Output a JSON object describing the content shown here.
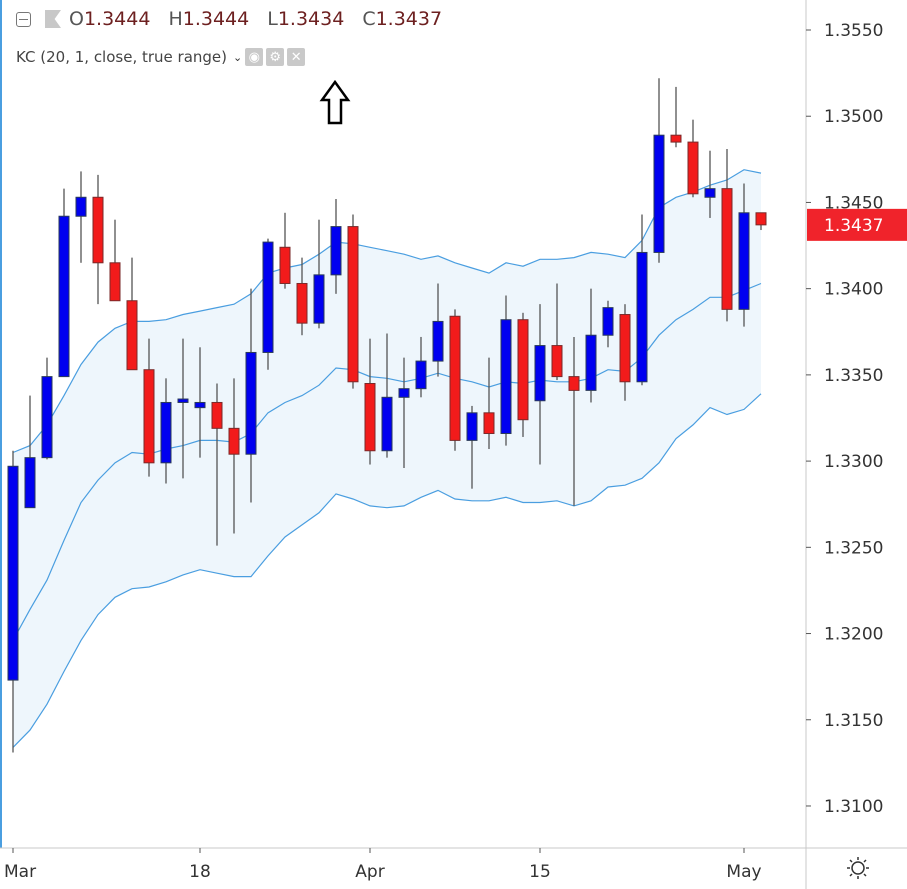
{
  "legend": {
    "open_label": "O",
    "open": "1.3444",
    "high_label": "H",
    "high": "1.3444",
    "low_label": "L",
    "low": "1.3434",
    "close_label": "C",
    "close": "1.3437"
  },
  "indicator": {
    "label": "KC (20, 1, close, true range)",
    "icons": [
      "eye-icon",
      "gear-icon",
      "close-icon"
    ]
  },
  "current_price": "1.3437",
  "colors": {
    "up": "#0000f0",
    "down": "#f21b1b",
    "band": "#4a9ee0",
    "band_fill": "#eef6fc",
    "price_box": "#f0232b"
  },
  "chart_data": {
    "type": "candlestick",
    "title": "",
    "ylim": [
      1.3075,
      1.3575
    ],
    "yticks": [
      "1.3550",
      "1.3500",
      "1.3450",
      "1.3400",
      "1.3350",
      "1.3300",
      "1.3250",
      "1.3200",
      "1.3150",
      "1.3100"
    ],
    "xticks": [
      {
        "index": 0,
        "label": "Mar"
      },
      {
        "index": 11,
        "label": "18"
      },
      {
        "index": 21,
        "label": "Apr"
      },
      {
        "index": 31,
        "label": "15"
      },
      {
        "index": 43,
        "label": "May"
      }
    ],
    "candles": [
      [
        1.3173,
        1.3306,
        1.3131,
        1.3297
      ],
      [
        1.3273,
        1.3338,
        1.3273,
        1.3302
      ],
      [
        1.3302,
        1.336,
        1.3301,
        1.3349
      ],
      [
        1.3349,
        1.3458,
        1.3349,
        1.3442
      ],
      [
        1.3442,
        1.3468,
        1.3415,
        1.3453
      ],
      [
        1.3453,
        1.3466,
        1.3391,
        1.3415
      ],
      [
        1.3415,
        1.344,
        1.3393,
        1.3393
      ],
      [
        1.3393,
        1.3418,
        1.3353,
        1.3353
      ],
      [
        1.3353,
        1.3371,
        1.3291,
        1.3299
      ],
      [
        1.3299,
        1.3348,
        1.3287,
        1.3334
      ],
      [
        1.3334,
        1.3371,
        1.329,
        1.3336
      ],
      [
        1.3331,
        1.3366,
        1.3302,
        1.3334
      ],
      [
        1.3334,
        1.3345,
        1.3251,
        1.3319
      ],
      [
        1.3319,
        1.3348,
        1.3258,
        1.3304
      ],
      [
        1.3304,
        1.34,
        1.3276,
        1.3363
      ],
      [
        1.3363,
        1.3429,
        1.3353,
        1.3427
      ],
      [
        1.3424,
        1.3444,
        1.34,
        1.3403
      ],
      [
        1.3403,
        1.3418,
        1.3373,
        1.338
      ],
      [
        1.338,
        1.344,
        1.3377,
        1.3408
      ],
      [
        1.3408,
        1.3452,
        1.3397,
        1.3436
      ],
      [
        1.3436,
        1.3443,
        1.3342,
        1.3346
      ],
      [
        1.3345,
        1.3371,
        1.3298,
        1.3306
      ],
      [
        1.3306,
        1.3374,
        1.3302,
        1.3337
      ],
      [
        1.3337,
        1.336,
        1.3296,
        1.3342
      ],
      [
        1.3342,
        1.3372,
        1.3337,
        1.3358
      ],
      [
        1.3358,
        1.3403,
        1.3349,
        1.3381
      ],
      [
        1.3384,
        1.3388,
        1.3306,
        1.3312
      ],
      [
        1.3312,
        1.3332,
        1.3284,
        1.3328
      ],
      [
        1.3328,
        1.336,
        1.3307,
        1.3316
      ],
      [
        1.3316,
        1.3396,
        1.3309,
        1.3382
      ],
      [
        1.3382,
        1.3386,
        1.3314,
        1.3324
      ],
      [
        1.3335,
        1.3391,
        1.3298,
        1.3367
      ],
      [
        1.3367,
        1.3403,
        1.3347,
        1.3349
      ],
      [
        1.3349,
        1.3372,
        1.3274,
        1.3341
      ],
      [
        1.3341,
        1.34,
        1.3334,
        1.3373
      ],
      [
        1.3373,
        1.3393,
        1.3366,
        1.3389
      ],
      [
        1.3385,
        1.3391,
        1.3335,
        1.3346
      ],
      [
        1.3346,
        1.3443,
        1.3344,
        1.3421
      ],
      [
        1.3421,
        1.3522,
        1.3415,
        1.3489
      ],
      [
        1.3489,
        1.3517,
        1.3482,
        1.3485
      ],
      [
        1.3485,
        1.3498,
        1.3453,
        1.3455
      ],
      [
        1.3453,
        1.348,
        1.3441,
        1.3458
      ],
      [
        1.3458,
        1.3481,
        1.3381,
        1.3388
      ],
      [
        1.3388,
        1.3461,
        1.3378,
        1.3444
      ],
      [
        1.3444,
        1.3444,
        1.3434,
        1.3437
      ]
    ],
    "candle_fields": [
      "open",
      "high",
      "low",
      "close"
    ],
    "keltner": {
      "upper": [
        1.3305,
        1.3309,
        1.3321,
        1.3338,
        1.3356,
        1.3369,
        1.3377,
        1.3381,
        1.3381,
        1.3382,
        1.3385,
        1.3387,
        1.3389,
        1.3391,
        1.3397,
        1.3409,
        1.3412,
        1.3414,
        1.342,
        1.3427,
        1.3426,
        1.3424,
        1.3422,
        1.342,
        1.3417,
        1.3419,
        1.3415,
        1.3412,
        1.3409,
        1.3415,
        1.3413,
        1.3417,
        1.3417,
        1.3418,
        1.3421,
        1.342,
        1.3418,
        1.3428,
        1.3447,
        1.3453,
        1.3456,
        1.346,
        1.3463,
        1.3469,
        1.3467
      ],
      "middle": [
        1.3196,
        1.3214,
        1.3231,
        1.3254,
        1.3276,
        1.3289,
        1.3299,
        1.3305,
        1.3304,
        1.3307,
        1.3309,
        1.3312,
        1.3312,
        1.3311,
        1.3316,
        1.3328,
        1.3334,
        1.3338,
        1.3344,
        1.3354,
        1.3353,
        1.3349,
        1.3348,
        1.3346,
        1.3348,
        1.3351,
        1.3348,
        1.3346,
        1.3343,
        1.3346,
        1.3345,
        1.3347,
        1.3346,
        1.3346,
        1.3348,
        1.3353,
        1.3352,
        1.336,
        1.3373,
        1.3382,
        1.3388,
        1.3395,
        1.3395,
        1.3399,
        1.3403
      ],
      "lower": [
        1.3134,
        1.3144,
        1.3159,
        1.3178,
        1.3196,
        1.3211,
        1.3221,
        1.3226,
        1.3227,
        1.323,
        1.3234,
        1.3237,
        1.3235,
        1.3233,
        1.3233,
        1.3245,
        1.3256,
        1.3263,
        1.327,
        1.3281,
        1.3278,
        1.3274,
        1.3273,
        1.3274,
        1.3279,
        1.3283,
        1.3278,
        1.3277,
        1.3277,
        1.3279,
        1.3276,
        1.3276,
        1.3277,
        1.3274,
        1.3277,
        1.3285,
        1.3286,
        1.329,
        1.3299,
        1.3313,
        1.3321,
        1.3331,
        1.3327,
        1.333,
        1.3339
      ]
    }
  }
}
